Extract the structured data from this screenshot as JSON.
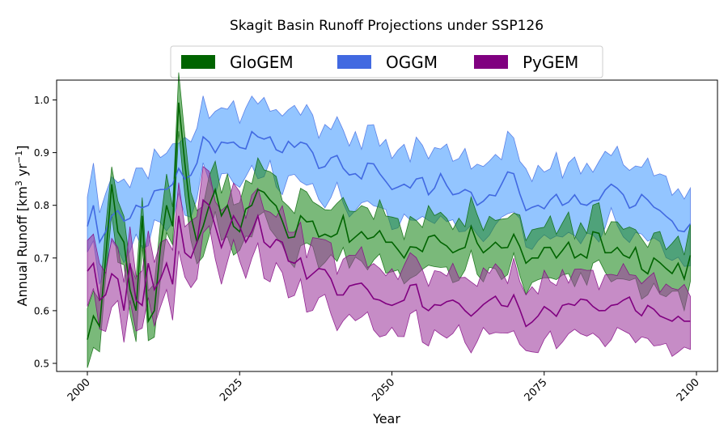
{
  "chart_data": {
    "type": "area",
    "title": "Skagit Basin Runoff Projections under SSP126",
    "xlabel": "Year",
    "ylabel": "Annual Runoff [km",
    "ylabel_sup1": "3",
    "ylabel_mid": " yr",
    "ylabel_sup2": "−1",
    "ylabel_end": "]",
    "xlim": [
      1995,
      2100
    ],
    "ylim": [
      0.48,
      1.04
    ],
    "x_ticks": [
      2000,
      2025,
      2050,
      2075,
      2100
    ],
    "x_tick_labels": [
      "2000",
      "2025",
      "2050",
      "2075",
      "2100"
    ],
    "y_ticks": [
      0.5,
      0.6,
      0.7,
      0.8,
      0.9,
      1.0
    ],
    "y_tick_labels": [
      "0.5",
      "0.6",
      "0.7",
      "0.8",
      "0.9",
      "1.0"
    ],
    "grid": false,
    "legend_position": "top-center, outside plot",
    "series": [
      {
        "name": "GloGEM",
        "line_color": "#006400",
        "fill_color": "#228B22",
        "key_points": [
          [
            2000,
            0.545
          ],
          [
            2001,
            0.59
          ],
          [
            2002,
            0.57
          ],
          [
            2003,
            0.7
          ],
          [
            2004,
            0.84
          ],
          [
            2005,
            0.75
          ],
          [
            2006,
            0.73
          ],
          [
            2007,
            0.64
          ],
          [
            2008,
            0.6
          ],
          [
            2009,
            0.78
          ],
          [
            2010,
            0.58
          ],
          [
            2011,
            0.6
          ],
          [
            2012,
            0.72
          ],
          [
            2013,
            0.8
          ],
          [
            2014,
            0.76
          ],
          [
            2015,
            0.995
          ],
          [
            2016,
            0.88
          ],
          [
            2017,
            0.78
          ],
          [
            2018,
            0.73
          ],
          [
            2019,
            0.76
          ],
          [
            2020,
            0.8
          ],
          [
            2021,
            0.83
          ],
          [
            2022,
            0.78
          ],
          [
            2023,
            0.8
          ],
          [
            2024,
            0.76
          ],
          [
            2025,
            0.75
          ],
          [
            2027,
            0.8
          ],
          [
            2028,
            0.83
          ],
          [
            2030,
            0.81
          ],
          [
            2032,
            0.77
          ],
          [
            2034,
            0.74
          ],
          [
            2035,
            0.78
          ],
          [
            2037,
            0.77
          ],
          [
            2038,
            0.74
          ],
          [
            2040,
            0.74
          ],
          [
            2042,
            0.78
          ],
          [
            2043,
            0.73
          ],
          [
            2045,
            0.75
          ],
          [
            2047,
            0.74
          ],
          [
            2049,
            0.73
          ],
          [
            2050,
            0.73
          ],
          [
            2052,
            0.7
          ],
          [
            2054,
            0.72
          ],
          [
            2056,
            0.74
          ],
          [
            2058,
            0.73
          ],
          [
            2060,
            0.71
          ],
          [
            2062,
            0.72
          ],
          [
            2063,
            0.76
          ],
          [
            2065,
            0.71
          ],
          [
            2067,
            0.73
          ],
          [
            2069,
            0.72
          ],
          [
            2070,
            0.745
          ],
          [
            2072,
            0.69
          ],
          [
            2073,
            0.7
          ],
          [
            2075,
            0.72
          ],
          [
            2077,
            0.7
          ],
          [
            2079,
            0.73
          ],
          [
            2080,
            0.7
          ],
          [
            2082,
            0.7
          ],
          [
            2083,
            0.75
          ],
          [
            2085,
            0.71
          ],
          [
            2087,
            0.72
          ],
          [
            2089,
            0.7
          ],
          [
            2090,
            0.72
          ],
          [
            2092,
            0.67
          ],
          [
            2093,
            0.7
          ],
          [
            2095,
            0.68
          ],
          [
            2097,
            0.69
          ],
          [
            2098,
            0.66
          ],
          [
            2099,
            0.705
          ]
        ],
        "band_width": 0.06
      },
      {
        "name": "OGGM",
        "line_color": "#4169E1",
        "fill_color": "#87BFFF",
        "key_points": [
          [
            2000,
            0.76
          ],
          [
            2001,
            0.8
          ],
          [
            2002,
            0.73
          ],
          [
            2003,
            0.75
          ],
          [
            2004,
            0.78
          ],
          [
            2005,
            0.79
          ],
          [
            2006,
            0.77
          ],
          [
            2008,
            0.8
          ],
          [
            2010,
            0.8
          ],
          [
            2012,
            0.83
          ],
          [
            2014,
            0.84
          ],
          [
            2015,
            0.87
          ],
          [
            2016,
            0.85
          ],
          [
            2018,
            0.88
          ],
          [
            2019,
            0.93
          ],
          [
            2020,
            0.92
          ],
          [
            2021,
            0.9
          ],
          [
            2022,
            0.92
          ],
          [
            2024,
            0.92
          ],
          [
            2025,
            0.91
          ],
          [
            2027,
            0.94
          ],
          [
            2028,
            0.93
          ],
          [
            2030,
            0.93
          ],
          [
            2032,
            0.9
          ],
          [
            2034,
            0.91
          ],
          [
            2035,
            0.92
          ],
          [
            2037,
            0.9
          ],
          [
            2038,
            0.87
          ],
          [
            2040,
            0.89
          ],
          [
            2042,
            0.87
          ],
          [
            2044,
            0.86
          ],
          [
            2045,
            0.85
          ],
          [
            2046,
            0.88
          ],
          [
            2048,
            0.86
          ],
          [
            2050,
            0.83
          ],
          [
            2052,
            0.84
          ],
          [
            2054,
            0.85
          ],
          [
            2056,
            0.82
          ],
          [
            2058,
            0.86
          ],
          [
            2060,
            0.82
          ],
          [
            2062,
            0.83
          ],
          [
            2064,
            0.8
          ],
          [
            2066,
            0.82
          ],
          [
            2068,
            0.84
          ],
          [
            2070,
            0.86
          ],
          [
            2072,
            0.79
          ],
          [
            2074,
            0.8
          ],
          [
            2076,
            0.81
          ],
          [
            2078,
            0.8
          ],
          [
            2080,
            0.82
          ],
          [
            2082,
            0.8
          ],
          [
            2084,
            0.81
          ],
          [
            2086,
            0.84
          ],
          [
            2088,
            0.82
          ],
          [
            2090,
            0.8
          ],
          [
            2092,
            0.81
          ],
          [
            2094,
            0.79
          ],
          [
            2096,
            0.77
          ],
          [
            2098,
            0.75
          ],
          [
            2099,
            0.765
          ]
        ],
        "band_width": 0.08
      },
      {
        "name": "PyGEM",
        "line_color": "#800080",
        "fill_color": "#A040A0",
        "key_points": [
          [
            2000,
            0.675
          ],
          [
            2001,
            0.69
          ],
          [
            2002,
            0.62
          ],
          [
            2003,
            0.63
          ],
          [
            2004,
            0.67
          ],
          [
            2005,
            0.66
          ],
          [
            2006,
            0.6
          ],
          [
            2007,
            0.69
          ],
          [
            2008,
            0.62
          ],
          [
            2009,
            0.61
          ],
          [
            2010,
            0.69
          ],
          [
            2011,
            0.64
          ],
          [
            2012,
            0.66
          ],
          [
            2013,
            0.69
          ],
          [
            2014,
            0.65
          ],
          [
            2015,
            0.78
          ],
          [
            2016,
            0.71
          ],
          [
            2017,
            0.7
          ],
          [
            2018,
            0.73
          ],
          [
            2019,
            0.81
          ],
          [
            2020,
            0.8
          ],
          [
            2021,
            0.76
          ],
          [
            2022,
            0.72
          ],
          [
            2023,
            0.75
          ],
          [
            2024,
            0.78
          ],
          [
            2025,
            0.76
          ],
          [
            2026,
            0.73
          ],
          [
            2027,
            0.75
          ],
          [
            2028,
            0.78
          ],
          [
            2029,
            0.73
          ],
          [
            2030,
            0.72
          ],
          [
            2032,
            0.73
          ],
          [
            2034,
            0.69
          ],
          [
            2035,
            0.7
          ],
          [
            2036,
            0.66
          ],
          [
            2038,
            0.68
          ],
          [
            2040,
            0.66
          ],
          [
            2042,
            0.63
          ],
          [
            2044,
            0.65
          ],
          [
            2046,
            0.64
          ],
          [
            2048,
            0.62
          ],
          [
            2050,
            0.61
          ],
          [
            2052,
            0.62
          ],
          [
            2054,
            0.65
          ],
          [
            2056,
            0.6
          ],
          [
            2058,
            0.61
          ],
          [
            2060,
            0.62
          ],
          [
            2062,
            0.6
          ],
          [
            2064,
            0.6
          ],
          [
            2066,
            0.62
          ],
          [
            2068,
            0.61
          ],
          [
            2070,
            0.63
          ],
          [
            2072,
            0.57
          ],
          [
            2074,
            0.59
          ],
          [
            2076,
            0.6
          ],
          [
            2078,
            0.61
          ],
          [
            2080,
            0.61
          ],
          [
            2082,
            0.62
          ],
          [
            2084,
            0.6
          ],
          [
            2086,
            0.61
          ],
          [
            2088,
            0.62
          ],
          [
            2090,
            0.6
          ],
          [
            2092,
            0.61
          ],
          [
            2094,
            0.59
          ],
          [
            2096,
            0.58
          ],
          [
            2098,
            0.58
          ],
          [
            2099,
            0.58
          ]
        ],
        "band_width": 0.07
      }
    ]
  }
}
